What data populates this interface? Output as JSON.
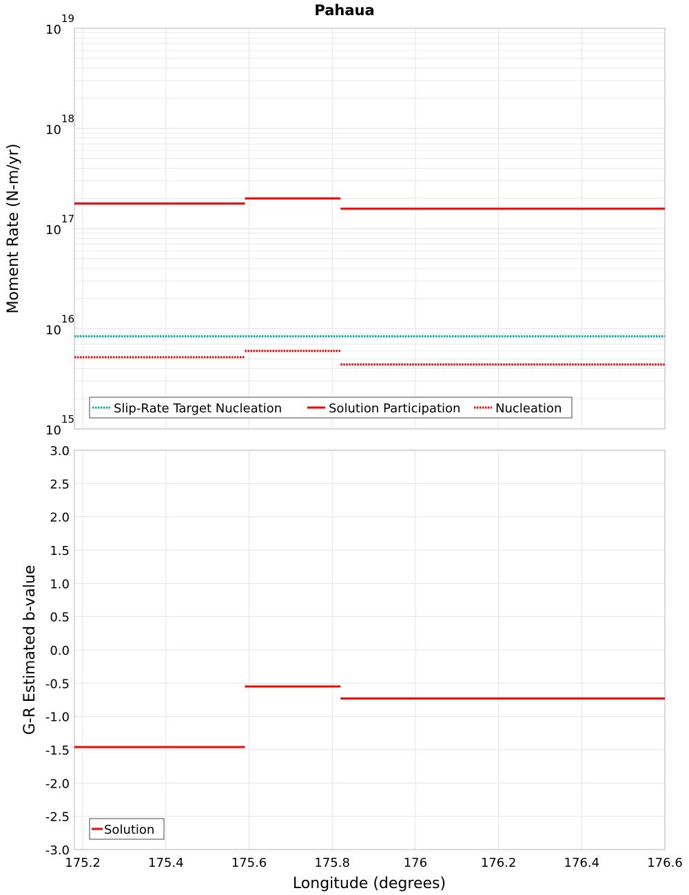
{
  "chart_data": [
    {
      "type": "line",
      "title": "Pahaua",
      "ylabel": "Moment Rate (N-m/yr)",
      "yscale": "log",
      "ylim": [
        1000000000000000.0,
        1e+19
      ],
      "xlim": [
        175.18,
        176.6
      ],
      "y_tick_labels": [
        {
          "base": "10",
          "exp": "15",
          "value": 1000000000000000.0
        },
        {
          "base": "10",
          "exp": "16",
          "value": 1e+16
        },
        {
          "base": "10",
          "exp": "17",
          "value": 1e+17
        },
        {
          "base": "10",
          "exp": "18",
          "value": 1e+18
        },
        {
          "base": "10",
          "exp": "19",
          "value": 1e+19
        }
      ],
      "legend": [
        "Slip-Rate Target Nucleation",
        "Solution Participation",
        "Nucleation"
      ],
      "series": [
        {
          "name": "Slip-Rate Target Nucleation",
          "color": "#00b4b4",
          "style": "dotted",
          "segments": [
            {
              "x0": 175.18,
              "x1": 176.6,
              "y": 8400000000000000.0
            }
          ]
        },
        {
          "name": "Solution Participation",
          "color": "#ff0000",
          "style": "solid",
          "segments": [
            {
              "x0": 175.18,
              "x1": 175.59,
              "y": 1.78e+17
            },
            {
              "x0": 175.59,
              "x1": 175.82,
              "y": 2e+17
            },
            {
              "x0": 175.82,
              "x1": 176.6,
              "y": 1.58e+17
            }
          ]
        },
        {
          "name": "Nucleation",
          "color": "#ff0000",
          "style": "dotted",
          "segments": [
            {
              "x0": 175.18,
              "x1": 175.59,
              "y": 5200000000000000.0
            },
            {
              "x0": 175.59,
              "x1": 175.82,
              "y": 6000000000000000.0
            },
            {
              "x0": 175.82,
              "x1": 176.6,
              "y": 4400000000000000.0
            }
          ]
        }
      ]
    },
    {
      "type": "line",
      "xlabel": "Longitude (degrees)",
      "ylabel": "G-R Estimated b-value",
      "ylim": [
        -3.0,
        3.0
      ],
      "xlim": [
        175.18,
        176.6
      ],
      "y_ticks": [
        "3.0",
        "2.5",
        "2.0",
        "1.5",
        "1.0",
        "0.5",
        "0.0",
        "-0.5",
        "-1.0",
        "-1.5",
        "-2.0",
        "-2.5",
        "-3.0"
      ],
      "x_ticks": [
        "175.2",
        "175.4",
        "175.6",
        "175.8",
        "176",
        "176.2",
        "176.4",
        "176.6"
      ],
      "legend": [
        "Solution"
      ],
      "series": [
        {
          "name": "Solution",
          "color": "#ff0000",
          "style": "solid",
          "segments": [
            {
              "x0": 175.18,
              "x1": 175.59,
              "y": -1.46
            },
            {
              "x0": 175.59,
              "x1": 175.82,
              "y": -0.55
            },
            {
              "x0": 175.82,
              "x1": 176.6,
              "y": -0.73
            }
          ]
        }
      ]
    }
  ]
}
